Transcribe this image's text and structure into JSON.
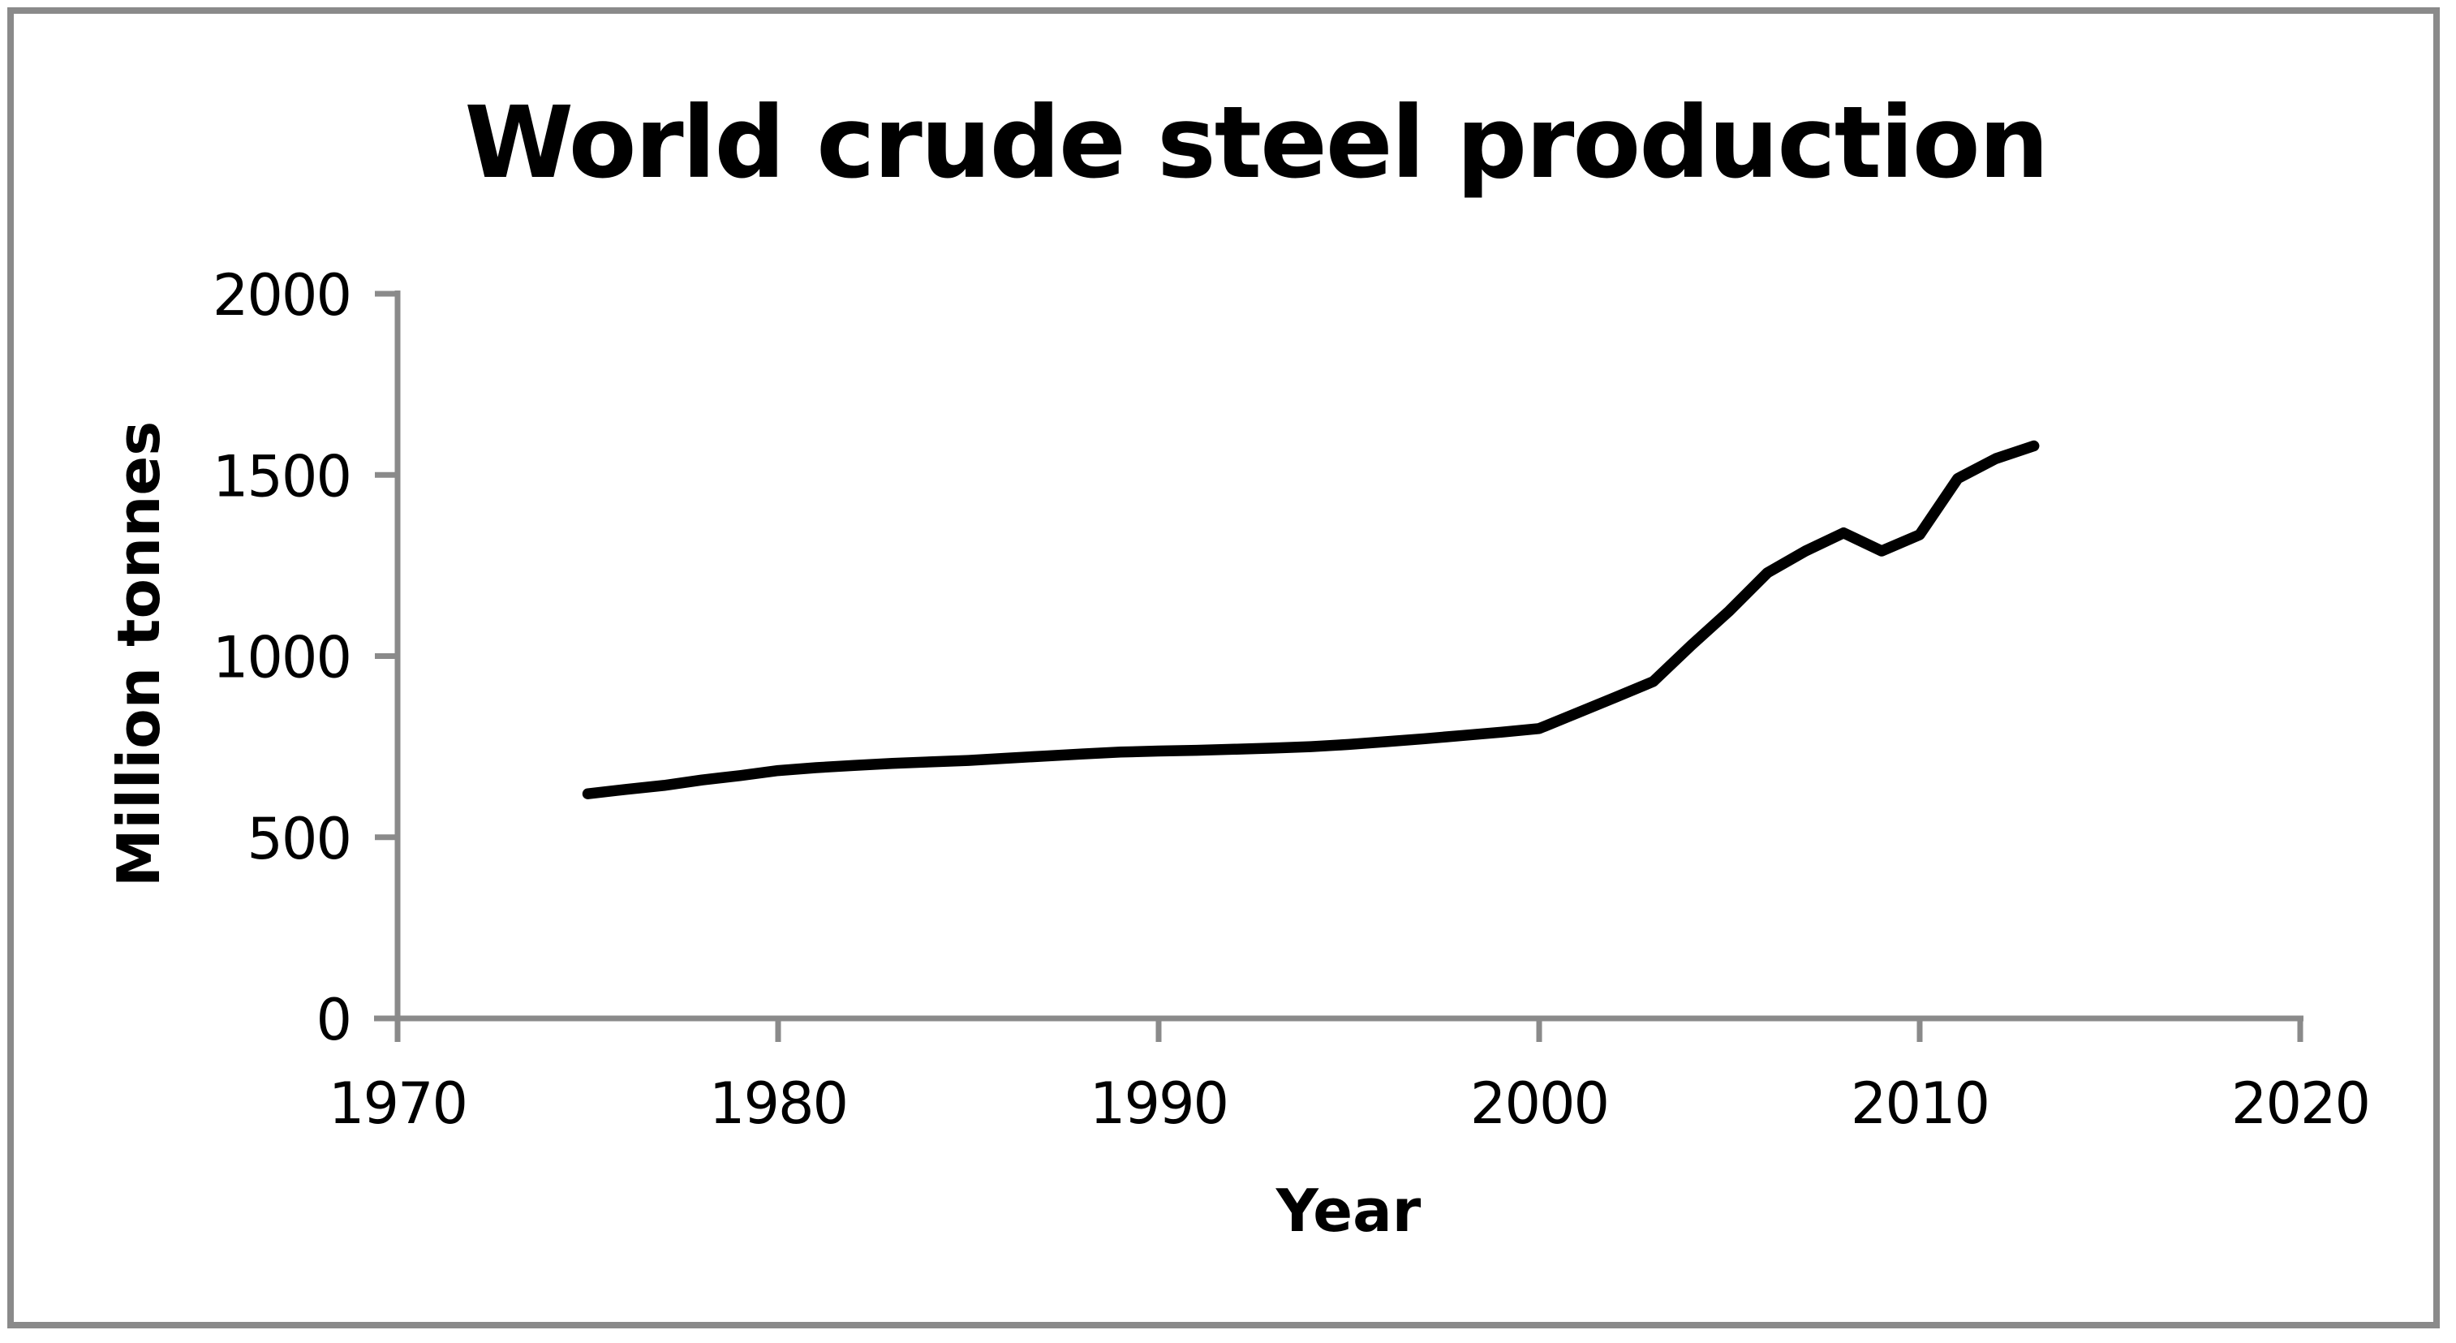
{
  "chart_data": {
    "type": "line",
    "title": "World crude steel production",
    "xlabel": "Year",
    "ylabel": "Million tonnes",
    "xlim": [
      1970,
      2020
    ],
    "ylim": [
      0,
      2000
    ],
    "x_ticks": [
      "1970",
      "1980",
      "1990",
      "2000",
      "2010",
      "2020"
    ],
    "y_ticks": [
      "0",
      "500",
      "1000",
      "1500",
      "2000"
    ],
    "grid": false,
    "legend_position": "none",
    "line_color": "#000000",
    "axis_color": "#8a8a8a",
    "series": [
      {
        "name": "World crude steel production",
        "units": "million tonnes",
        "x": [
          1975,
          1976,
          1977,
          1978,
          1979,
          1980,
          1981,
          1982,
          1983,
          1984,
          1985,
          1986,
          1987,
          1988,
          1989,
          1990,
          1991,
          1992,
          1993,
          1994,
          1995,
          1996,
          1997,
          1998,
          1999,
          2000,
          2001,
          2002,
          2003,
          2004,
          2005,
          2006,
          2007,
          2008,
          2009,
          2010,
          2011,
          2012,
          2013
        ],
        "values": [
          620,
          632,
          643,
          658,
          670,
          684,
          692,
          698,
          704,
          708,
          712,
          718,
          724,
          730,
          735,
          738,
          740,
          743,
          746,
          750,
          756,
          764,
          772,
          781,
          790,
          800,
          843,
          886,
          930,
          1030,
          1125,
          1230,
          1290,
          1340,
          1290,
          1335,
          1490,
          1545,
          1580
        ]
      }
    ]
  }
}
